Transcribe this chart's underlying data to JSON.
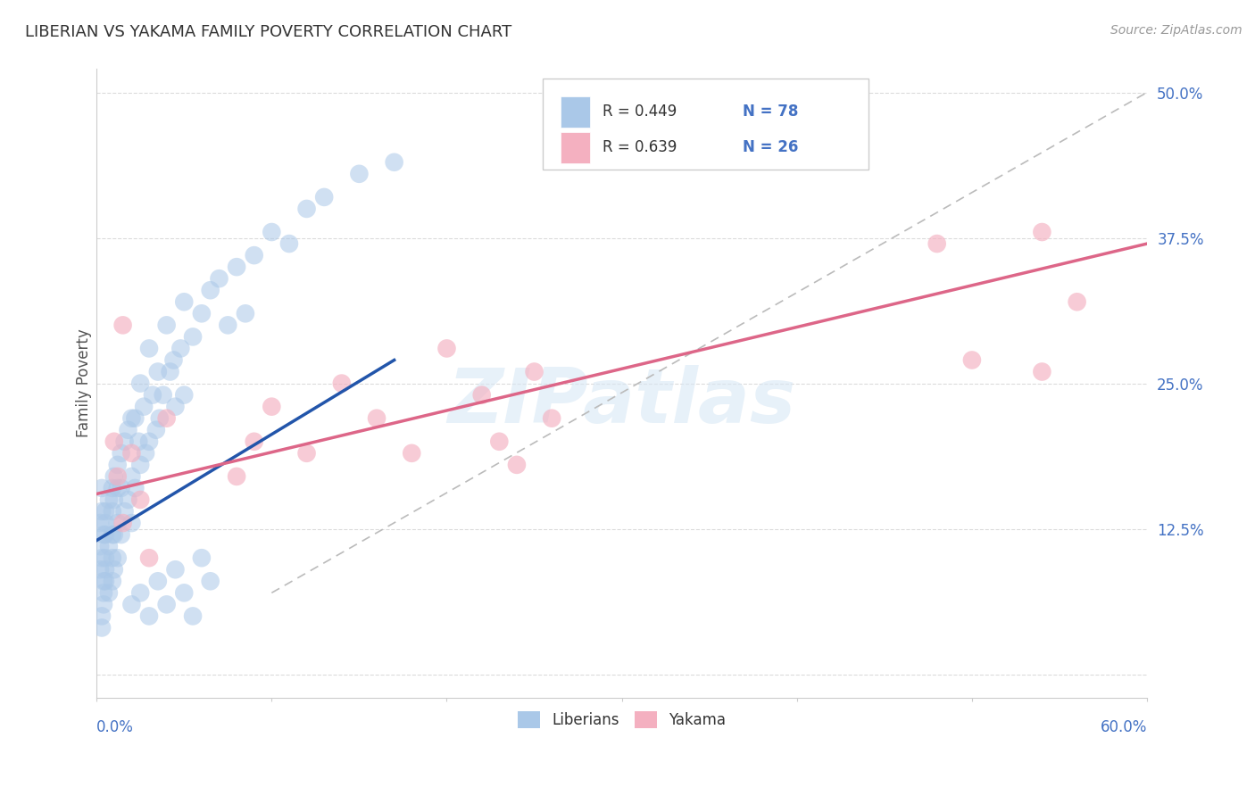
{
  "title": "LIBERIAN VS YAKAMA FAMILY POVERTY CORRELATION CHART",
  "source": "Source: ZipAtlas.com",
  "ylabel": "Family Poverty",
  "xlim": [
    0.0,
    0.6
  ],
  "ylim": [
    -0.02,
    0.52
  ],
  "yticks": [
    0.0,
    0.125,
    0.25,
    0.375,
    0.5
  ],
  "ytick_labels": [
    "",
    "12.5%",
    "25.0%",
    "37.5%",
    "50.0%"
  ],
  "legend_r1": "R = 0.449",
  "legend_n1": "N = 78",
  "legend_r2": "R = 0.639",
  "legend_n2": "N = 26",
  "legend_label1": "Liberians",
  "legend_label2": "Yakama",
  "color_blue": "#aac8e8",
  "color_pink": "#f4b0c0",
  "color_blue_line": "#2255aa",
  "color_pink_line": "#dd6688",
  "color_text_blue": "#4472c4",
  "color_text_dark": "#333333",
  "background_color": "#ffffff",
  "grid_color": "#cccccc",
  "blue_dots_x": [
    0.005,
    0.005,
    0.005,
    0.005,
    0.005,
    0.005,
    0.007,
    0.007,
    0.007,
    0.009,
    0.009,
    0.009,
    0.009,
    0.009,
    0.01,
    0.01,
    0.01,
    0.01,
    0.012,
    0.012,
    0.012,
    0.012,
    0.014,
    0.014,
    0.014,
    0.016,
    0.016,
    0.018,
    0.018,
    0.02,
    0.02,
    0.02,
    0.022,
    0.022,
    0.024,
    0.025,
    0.025,
    0.027,
    0.028,
    0.03,
    0.03,
    0.032,
    0.034,
    0.035,
    0.036,
    0.038,
    0.04,
    0.042,
    0.044,
    0.045,
    0.048,
    0.05,
    0.05,
    0.055,
    0.06,
    0.065,
    0.07,
    0.075,
    0.08,
    0.085,
    0.09,
    0.1,
    0.11,
    0.12,
    0.13,
    0.15,
    0.17,
    0.02,
    0.025,
    0.03,
    0.035,
    0.04,
    0.045,
    0.05,
    0.055,
    0.06,
    0.065
  ],
  "blue_dots_y": [
    0.14,
    0.13,
    0.12,
    0.1,
    0.09,
    0.08,
    0.15,
    0.11,
    0.07,
    0.16,
    0.14,
    0.12,
    0.1,
    0.08,
    0.17,
    0.15,
    0.12,
    0.09,
    0.18,
    0.16,
    0.13,
    0.1,
    0.19,
    0.16,
    0.12,
    0.2,
    0.14,
    0.21,
    0.15,
    0.22,
    0.17,
    0.13,
    0.22,
    0.16,
    0.2,
    0.25,
    0.18,
    0.23,
    0.19,
    0.28,
    0.2,
    0.24,
    0.21,
    0.26,
    0.22,
    0.24,
    0.3,
    0.26,
    0.27,
    0.23,
    0.28,
    0.32,
    0.24,
    0.29,
    0.31,
    0.33,
    0.34,
    0.3,
    0.35,
    0.31,
    0.36,
    0.38,
    0.37,
    0.4,
    0.41,
    0.43,
    0.44,
    0.06,
    0.07,
    0.05,
    0.08,
    0.06,
    0.09,
    0.07,
    0.05,
    0.1,
    0.08
  ],
  "blue_dots_x2": [
    0.003,
    0.004,
    0.003,
    0.004,
    0.003,
    0.002,
    0.004,
    0.002,
    0.003,
    0.004,
    0.002,
    0.003
  ],
  "blue_dots_y2": [
    0.14,
    0.12,
    0.1,
    0.08,
    0.16,
    0.13,
    0.06,
    0.09,
    0.05,
    0.07,
    0.11,
    0.04
  ],
  "pink_dots_x": [
    0.01,
    0.012,
    0.015,
    0.015,
    0.02,
    0.025,
    0.03,
    0.04,
    0.08,
    0.09,
    0.1,
    0.12,
    0.14,
    0.16,
    0.18,
    0.2,
    0.22,
    0.23,
    0.24,
    0.25,
    0.26,
    0.48,
    0.5,
    0.54,
    0.54,
    0.56
  ],
  "pink_dots_y": [
    0.2,
    0.17,
    0.3,
    0.13,
    0.19,
    0.15,
    0.1,
    0.22,
    0.17,
    0.2,
    0.23,
    0.19,
    0.25,
    0.22,
    0.19,
    0.28,
    0.24,
    0.2,
    0.18,
    0.26,
    0.22,
    0.37,
    0.27,
    0.38,
    0.26,
    0.32
  ],
  "blue_line_x": [
    0.0,
    0.17
  ],
  "blue_line_y": [
    0.115,
    0.27
  ],
  "pink_line_x": [
    0.0,
    0.6
  ],
  "pink_line_y": [
    0.155,
    0.37
  ],
  "diag_line_x": [
    0.1,
    0.6
  ],
  "diag_line_y": [
    0.07,
    0.5
  ],
  "watermark_text": "ZIPatlas"
}
